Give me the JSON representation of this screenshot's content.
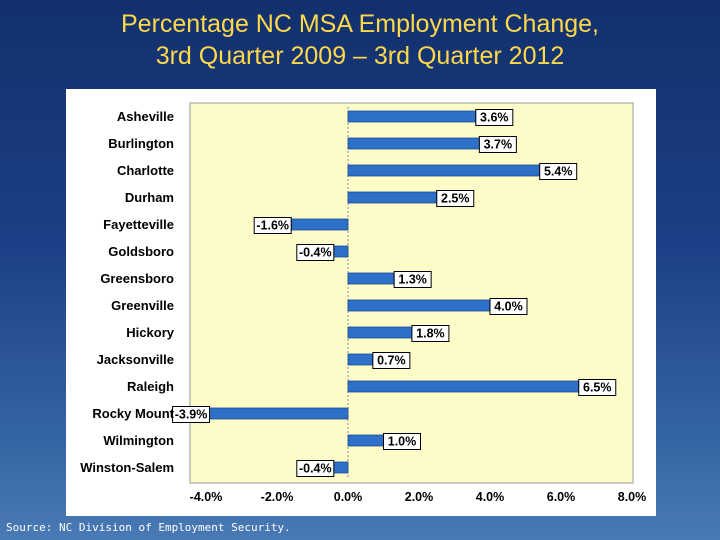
{
  "slide": {
    "title_line1": "Percentage NC MSA Employment Change,",
    "title_line2": "3rd Quarter 2009 – 3rd Quarter 2012",
    "source": "Source: NC Division of Employment Security."
  },
  "colors": {
    "bar_fill": "#2e6fc7",
    "plot_bg": "#fdfbc8",
    "label_border": "#000000"
  },
  "chart_data": {
    "type": "bar",
    "orientation": "horizontal",
    "title": "Percentage NC MSA Employment Change, 3rd Quarter 2009 – 3rd Quarter 2012",
    "categories": [
      "Asheville",
      "Burlington",
      "Charlotte",
      "Durham",
      "Fayetteville",
      "Goldsboro",
      "Greensboro",
      "Greenville",
      "Hickory",
      "Jacksonville",
      "Raleigh",
      "Rocky Mount",
      "Wilmington",
      "Winston-Salem"
    ],
    "values": [
      3.6,
      3.7,
      5.4,
      2.5,
      -1.6,
      -0.4,
      1.3,
      4.0,
      1.8,
      0.7,
      6.5,
      -3.9,
      1.0,
      -0.4
    ],
    "data_labels": [
      "3.6%",
      "3.7%",
      "5.4%",
      "2.5%",
      "-1.6%",
      "-0.4%",
      "1.3%",
      "4.0%",
      "1.8%",
      "0.7%",
      "6.5%",
      "-3.9%",
      "1.0%",
      "-0.4%"
    ],
    "xlim": [
      -4.0,
      8.0
    ],
    "x_ticks": [
      -4.0,
      -2.0,
      0.0,
      2.0,
      4.0,
      6.0,
      8.0
    ],
    "x_tick_labels": [
      "-4.0%",
      "-2.0%",
      "0.0%",
      "2.0%",
      "4.0%",
      "6.0%",
      "8.0%"
    ],
    "xlabel": "",
    "ylabel": "",
    "grid": false,
    "legend": "none"
  }
}
